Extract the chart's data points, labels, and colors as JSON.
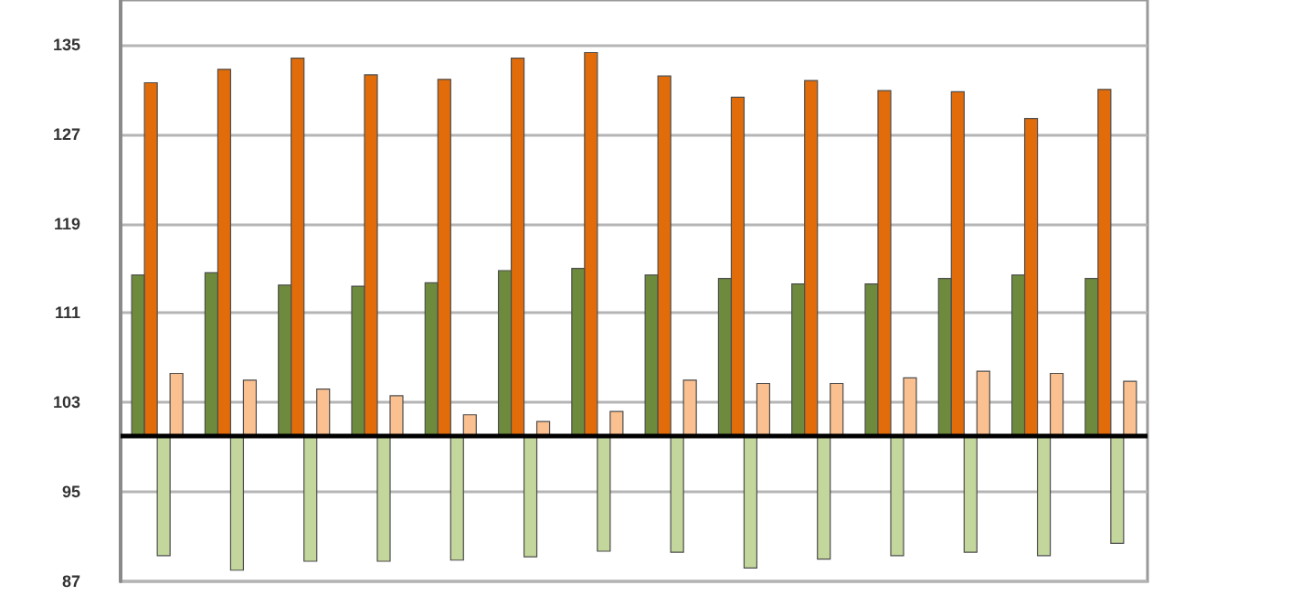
{
  "chart_data": {
    "type": "bar",
    "categories": [
      null,
      null,
      null,
      null,
      null,
      null,
      null,
      null,
      null,
      null,
      null,
      null,
      null,
      null
    ],
    "series": [
      {
        "color": "#6e8b3d",
        "base": [
          100,
          100,
          100,
          100,
          100,
          100,
          100,
          100,
          100,
          100,
          100,
          100,
          100,
          100
        ],
        "values": [
          14.4,
          14.6,
          13.5,
          13.4,
          13.7,
          14.8,
          15.0,
          14.4,
          14.1,
          13.6,
          13.6,
          14.1,
          14.4,
          14.1
        ]
      },
      {
        "color": "#e36c0a",
        "base": [
          100,
          100,
          100,
          100,
          100,
          100,
          100,
          100,
          100,
          100,
          100,
          100,
          100,
          100
        ],
        "values": [
          31.6,
          32.8,
          33.8,
          32.3,
          31.9,
          33.8,
          34.3,
          32.2,
          30.3,
          31.8,
          30.9,
          30.8,
          28.4,
          31.0
        ]
      },
      {
        "color": "#c3d69b",
        "base": [
          100,
          100,
          100,
          100,
          100,
          100,
          100,
          100,
          100,
          100,
          100,
          100,
          100,
          100
        ],
        "values": [
          -10.7,
          -12.0,
          -11.2,
          -11.2,
          -11.1,
          -10.8,
          -10.3,
          -10.4,
          -11.8,
          -11.0,
          -10.7,
          -10.4,
          -10.7,
          -9.6
        ]
      },
      {
        "color": "#fac090",
        "base": [
          100,
          100,
          100,
          100,
          100,
          100,
          100,
          100,
          100,
          100,
          100,
          100,
          100,
          100
        ],
        "values": [
          5.6,
          5.0,
          4.2,
          3.6,
          1.9,
          1.3,
          2.2,
          5.0,
          4.7,
          4.7,
          5.2,
          5.8,
          5.6,
          4.9
        ]
      }
    ],
    "ylim": [
      87,
      139
    ],
    "yticks": [
      87,
      95,
      103,
      111,
      119,
      127,
      135
    ],
    "grid": "y",
    "tick_labels": "y",
    "ref_lines": [
      {
        "axis": "y",
        "value": 100,
        "color": "#000000"
      }
    ]
  }
}
